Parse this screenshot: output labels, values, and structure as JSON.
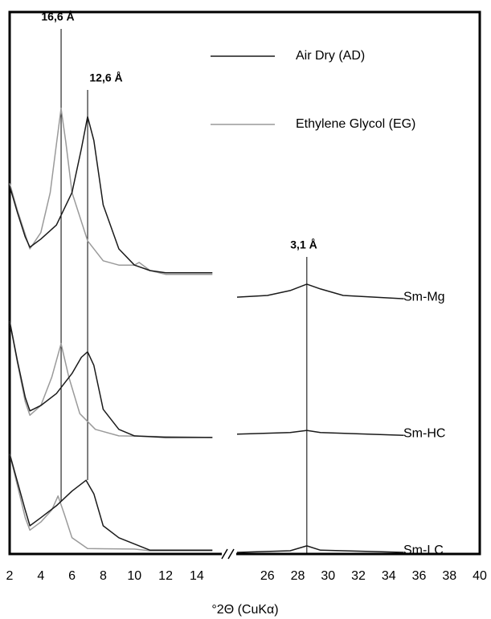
{
  "chart_data": {
    "type": "line",
    "x_label": "°2Θ (CuKα)",
    "xlim": [
      2,
      40
    ],
    "x_break": [
      15.5,
      24
    ],
    "xticks": [
      2,
      4,
      6,
      8,
      10,
      12,
      14,
      26,
      28,
      30,
      32,
      34,
      36,
      38,
      40
    ],
    "ylim": [
      0,
      100
    ],
    "legend_position": "top-right",
    "legend": [
      {
        "name": "Air Dry (AD)",
        "color": "#1a1a1a"
      },
      {
        "name": "Ethylene Glycol (EG)",
        "color": "#9a9a9a"
      }
    ],
    "annotations": [
      {
        "label": "16,6 Å",
        "x": 5.3
      },
      {
        "label": "12,6 Å",
        "x": 7.0
      },
      {
        "label": "3,1 Å",
        "x": 28.6
      }
    ],
    "samples": [
      {
        "label": "Sm-Mg",
        "AD": {
          "x": [
            2,
            2.5,
            3,
            3.3,
            4,
            5,
            6,
            6.6,
            7.0,
            7.4,
            8,
            9,
            10,
            11,
            12,
            15,
            20,
            24,
            26,
            27.5,
            28.6,
            29.5,
            31,
            35
          ],
          "values": [
            67.9,
            63.0,
            58.5,
            56.6,
            58.1,
            60.7,
            66.7,
            74.8,
            80.7,
            76.3,
            64.4,
            56.3,
            53.3,
            52.3,
            51.9,
            51.9,
            null,
            47.4,
            47.7,
            48.6,
            49.8,
            48.9,
            47.7,
            47.1
          ]
        },
        "EG": {
          "x": [
            2,
            2.5,
            3,
            3.3,
            4,
            4.6,
            5.0,
            5.3,
            5.6,
            6,
            7,
            8,
            9,
            10,
            10.3,
            11,
            12,
            15
          ],
          "values": [
            68.4,
            63.4,
            59.0,
            56.3,
            59.3,
            66.7,
            75.6,
            82.2,
            76.0,
            66.7,
            57.8,
            54.1,
            53.3,
            53.3,
            53.8,
            52.3,
            51.6,
            51.6
          ]
        }
      },
      {
        "label": "Sm-HC",
        "AD": {
          "x": [
            2,
            2.5,
            3,
            3.3,
            4,
            5,
            6,
            6.6,
            7.0,
            7.4,
            8,
            9,
            10,
            12,
            15,
            20,
            24,
            27.5,
            28.6,
            29.5,
            35
          ],
          "values": [
            43.0,
            35.6,
            28.9,
            26.4,
            27.4,
            29.6,
            33.3,
            36.3,
            37.3,
            34.8,
            26.7,
            23.0,
            21.8,
            21.5,
            21.5,
            null,
            22.1,
            22.4,
            22.8,
            22.4,
            21.9
          ]
        },
        "EG": {
          "x": [
            2,
            2.5,
            3,
            3.3,
            4,
            4.7,
            5.3,
            5.8,
            6.5,
            7.5,
            9,
            15
          ],
          "values": [
            43.0,
            35.3,
            28.1,
            25.6,
            27.4,
            32.6,
            38.8,
            32.6,
            25.9,
            23.0,
            21.8,
            21.5
          ]
        }
      },
      {
        "label": "Sm-LC",
        "AD": {
          "x": [
            2,
            2.5,
            3,
            3.3,
            4,
            5,
            6,
            6.9,
            7.4,
            8,
            9,
            11,
            15,
            20,
            24,
            27.5,
            28.6,
            29.5,
            35
          ],
          "values": [
            18.5,
            13.3,
            8.1,
            5.2,
            6.7,
            8.9,
            11.6,
            13.6,
            11.1,
            5.2,
            3.0,
            0.7,
            0.7,
            null,
            0.3,
            0.6,
            1.5,
            0.7,
            0.3
          ]
        },
        "EG": {
          "x": [
            2,
            2.5,
            3,
            3.3,
            4,
            4.7,
            5.1,
            5.5,
            6,
            7,
            10,
            11,
            15
          ],
          "values": [
            18.5,
            12.6,
            6.7,
            4.4,
            5.9,
            8.1,
            10.7,
            7.4,
            3.0,
            1.0,
            0.9,
            0.6,
            0.6
          ]
        }
      }
    ]
  }
}
